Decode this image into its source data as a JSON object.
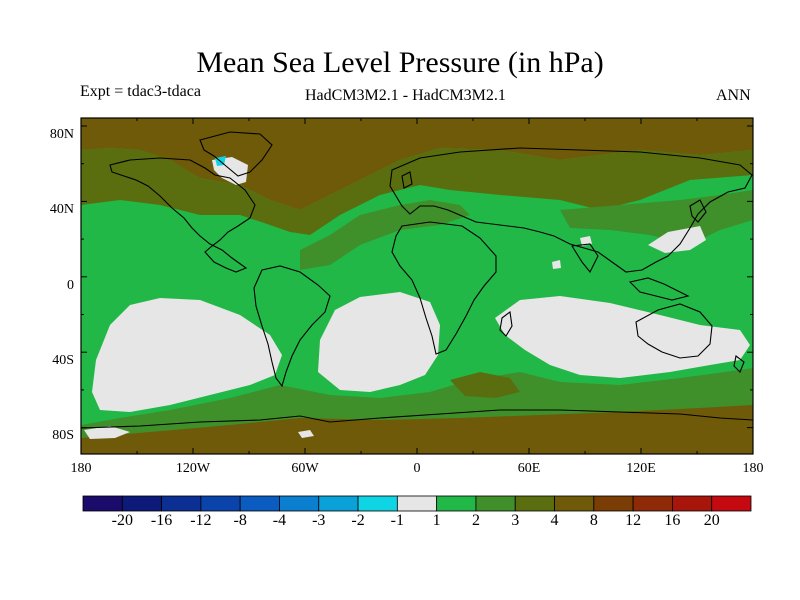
{
  "title": "Mean Sea Level Pressure (in hPa)",
  "expt_label": "Expt = tdac3-tdaca",
  "model_label": "HadCM3M2.1 - HadCM3M2.1",
  "season_label": "ANN",
  "lat_ticks": [
    "80N",
    "40N",
    "0",
    "40S",
    "80S"
  ],
  "lon_ticks": [
    "180",
    "120W",
    "60W",
    "0",
    "60E",
    "120E",
    "180"
  ],
  "colorbar": {
    "bounds": [
      "-20",
      "-16",
      "-12",
      "-8",
      "-4",
      "-3",
      "-2",
      "-1",
      "1",
      "2",
      "3",
      "4",
      "8",
      "12",
      "16",
      "20"
    ],
    "colors": [
      "#1b0c6b",
      "#0d1a7a",
      "#0b2f93",
      "#0a44aa",
      "#0a5cc0",
      "#0b7fcf",
      "#0aa0d8",
      "#0fd4e3",
      "#e6e6e6",
      "#22b847",
      "#3f8f2a",
      "#5a6e10",
      "#6e5a08",
      "#7a3d05",
      "#8e2a08",
      "#a8160b",
      "#c40a10"
    ]
  },
  "field_colors": {
    "ocean": "#22b847",
    "mid": "#3f8f2a",
    "high": "#5a6e10",
    "higher": "#6e5a08",
    "low": "#e6e6e6",
    "neg": "#0fd4e3"
  }
}
